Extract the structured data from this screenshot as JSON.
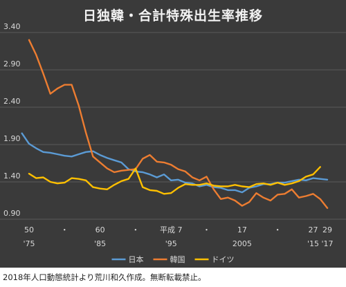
{
  "chart_data": {
    "type": "line",
    "title": "日独韓・合計特殊出生率推移",
    "y_axis": {
      "min": 0.9,
      "max": 3.4,
      "ticks": [
        3.4,
        2.9,
        2.4,
        1.9,
        1.4,
        0.9
      ],
      "tick_labels": [
        "3.40",
        "2.90",
        "2.40",
        "1.90",
        "1.40",
        "0.90"
      ],
      "grid": true
    },
    "x_axis": {
      "min": 1975,
      "max": 2017,
      "tick_labels_row1": [
        {
          "x": 1975,
          "label": "50"
        },
        {
          "x": 1980,
          "label": "・"
        },
        {
          "x": 1985,
          "label": "60"
        },
        {
          "x": 1990,
          "label": "・"
        },
        {
          "x": 1995,
          "label": "平成 7"
        },
        {
          "x": 2000,
          "label": "・"
        },
        {
          "x": 2005,
          "label": "17"
        },
        {
          "x": 2010,
          "label": "・"
        },
        {
          "x": 2015,
          "label": "27"
        },
        {
          "x": 2017,
          "label": "29"
        }
      ],
      "tick_labels_row2": [
        {
          "x": 1975,
          "label": "'75"
        },
        {
          "x": 1985,
          "label": "'85"
        },
        {
          "x": 1995,
          "label": "'95"
        },
        {
          "x": 2005,
          "label": "2005"
        },
        {
          "x": 2015,
          "label": "'15"
        },
        {
          "x": 2017,
          "label": "'17"
        }
      ]
    },
    "legend": "bottom-center",
    "series": [
      {
        "name": "日本",
        "color": "#5b9bd5",
        "x": [
          1974,
          1975,
          1976,
          1977,
          1978,
          1979,
          1980,
          1981,
          1982,
          1983,
          1984,
          1985,
          1986,
          1987,
          1988,
          1989,
          1990,
          1991,
          1992,
          1993,
          1994,
          1995,
          1996,
          1997,
          1998,
          1999,
          2000,
          2001,
          2002,
          2003,
          2004,
          2005,
          2006,
          2007,
          2008,
          2009,
          2010,
          2011,
          2012,
          2013,
          2014,
          2015,
          2016,
          2017
        ],
        "values": [
          2.05,
          1.91,
          1.85,
          1.8,
          1.79,
          1.77,
          1.75,
          1.74,
          1.77,
          1.8,
          1.81,
          1.76,
          1.72,
          1.69,
          1.66,
          1.57,
          1.54,
          1.53,
          1.5,
          1.46,
          1.5,
          1.42,
          1.43,
          1.39,
          1.38,
          1.34,
          1.36,
          1.33,
          1.32,
          1.29,
          1.29,
          1.26,
          1.32,
          1.34,
          1.37,
          1.37,
          1.39,
          1.39,
          1.41,
          1.43,
          1.42,
          1.45,
          1.44,
          1.43
        ]
      },
      {
        "name": "韓国",
        "color": "#ed7d31",
        "x": [
          1975,
          1976,
          1977,
          1978,
          1979,
          1980,
          1981,
          1982,
          1983,
          1984,
          1985,
          1986,
          1987,
          1988,
          1989,
          1990,
          1991,
          1992,
          1993,
          1994,
          1995,
          1996,
          1997,
          1998,
          1999,
          2000,
          2001,
          2002,
          2003,
          2004,
          2005,
          2006,
          2007,
          2008,
          2009,
          2010,
          2011,
          2012,
          2013,
          2014,
          2015,
          2016,
          2017
        ],
        "values": [
          3.3,
          3.1,
          2.85,
          2.58,
          2.65,
          2.7,
          2.7,
          2.42,
          2.06,
          1.74,
          1.66,
          1.58,
          1.53,
          1.55,
          1.56,
          1.57,
          1.71,
          1.76,
          1.67,
          1.66,
          1.63,
          1.57,
          1.54,
          1.46,
          1.42,
          1.47,
          1.3,
          1.17,
          1.19,
          1.15,
          1.08,
          1.13,
          1.25,
          1.19,
          1.15,
          1.23,
          1.24,
          1.3,
          1.19,
          1.21,
          1.24,
          1.17,
          1.05
        ]
      },
      {
        "name": "ドイツ",
        "color": "#ffc000",
        "x": [
          1975,
          1976,
          1977,
          1978,
          1979,
          1980,
          1981,
          1982,
          1983,
          1984,
          1985,
          1986,
          1987,
          1988,
          1989,
          1990,
          1991,
          1992,
          1993,
          1994,
          1995,
          1996,
          1997,
          1998,
          1999,
          2000,
          2001,
          2002,
          2003,
          2004,
          2005,
          2006,
          2007,
          2008,
          2009,
          2010,
          2011,
          2012,
          2013,
          2014,
          2015,
          2016
        ],
        "values": [
          1.51,
          1.45,
          1.46,
          1.4,
          1.38,
          1.39,
          1.45,
          1.44,
          1.42,
          1.33,
          1.31,
          1.3,
          1.36,
          1.41,
          1.44,
          1.58,
          1.33,
          1.29,
          1.28,
          1.24,
          1.25,
          1.32,
          1.37,
          1.36,
          1.36,
          1.38,
          1.35,
          1.34,
          1.34,
          1.36,
          1.34,
          1.33,
          1.37,
          1.38,
          1.36,
          1.39,
          1.36,
          1.38,
          1.41,
          1.47,
          1.5,
          1.6
        ]
      }
    ]
  },
  "footnote": "2018年人口動態統計より荒川和久作成。無断転載禁止。"
}
